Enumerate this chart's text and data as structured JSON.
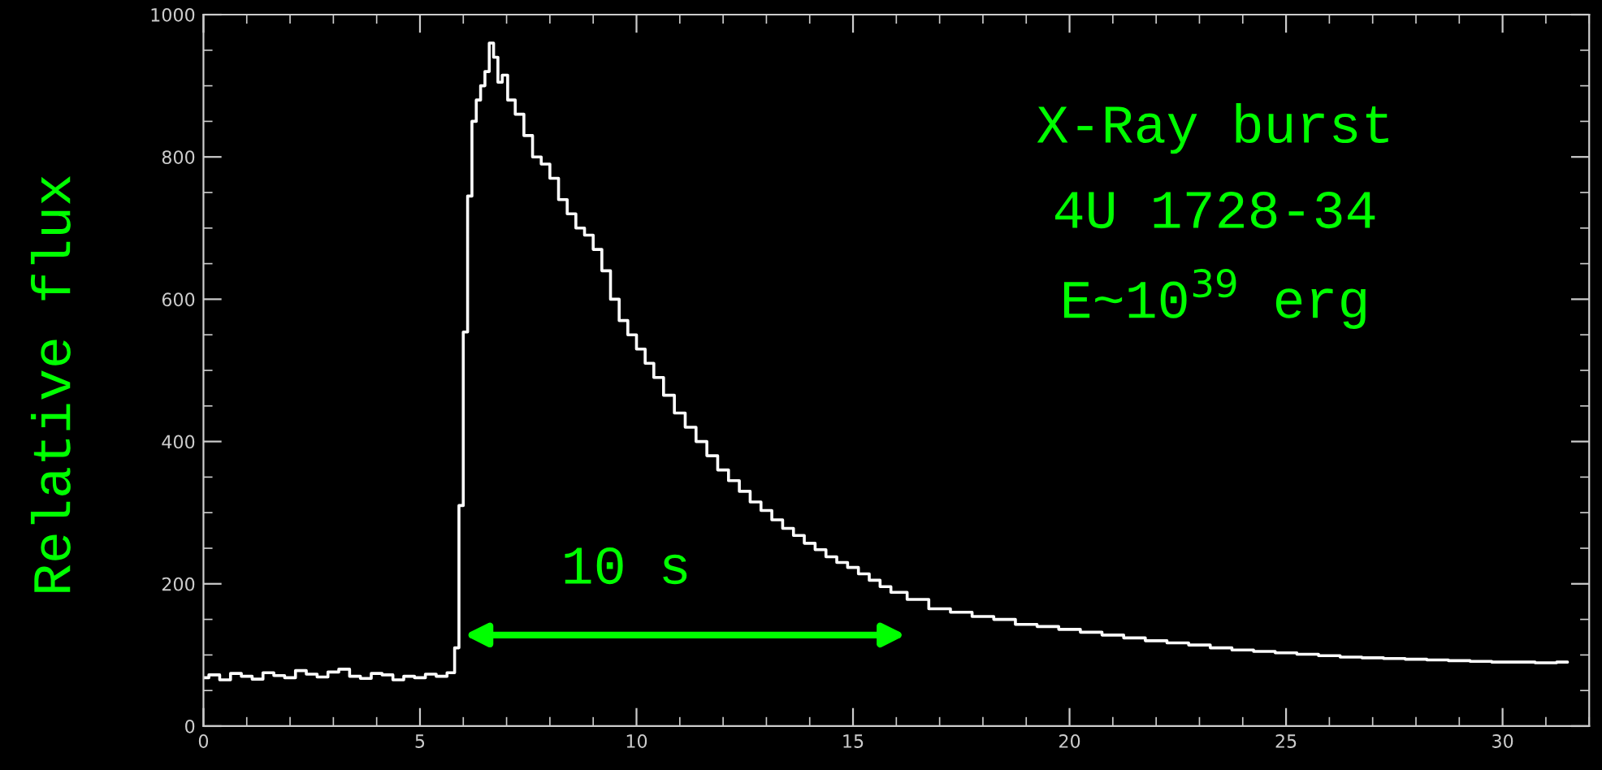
{
  "chart_data": {
    "type": "step",
    "ylabel": "Relative flux",
    "annotations": [
      "X-Ray burst",
      "4U 1728-34",
      "E~10$^{39}$ erg",
      "10 s"
    ],
    "x": [
      0,
      0.25,
      0.5,
      0.75,
      1,
      1.25,
      1.5,
      1.75,
      2,
      2.25,
      2.5,
      2.75,
      3,
      3.25,
      3.5,
      3.75,
      4,
      4.25,
      4.5,
      4.75,
      5,
      5.25,
      5.5,
      5.75,
      5.85,
      5.95,
      6.05,
      6.15,
      6.25,
      6.35,
      6.45,
      6.55,
      6.65,
      6.75,
      6.85,
      6.95,
      7.1,
      7.3,
      7.5,
      7.7,
      7.9,
      8.1,
      8.3,
      8.5,
      8.7,
      8.9,
      9.1,
      9.3,
      9.5,
      9.7,
      9.9,
      10.1,
      10.3,
      10.5,
      10.75,
      11,
      11.25,
      11.5,
      11.75,
      12,
      12.25,
      12.5,
      12.75,
      13,
      13.25,
      13.5,
      13.75,
      14,
      14.25,
      14.5,
      14.75,
      15,
      15.25,
      15.5,
      15.75,
      16,
      16.5,
      17,
      17.5,
      18,
      18.5,
      19,
      19.5,
      20,
      20.5,
      21,
      21.5,
      22,
      22.5,
      23,
      23.5,
      24,
      24.5,
      25,
      25.5,
      26,
      26.5,
      27,
      27.5,
      28,
      28.5,
      29,
      29.5,
      30,
      30.5,
      31,
      31.5
    ],
    "series": [
      {
        "color": "#ffffff",
        "values": [
          68,
          72,
          65,
          74,
          70,
          66,
          75,
          71,
          68,
          78,
          73,
          69,
          76,
          80,
          70,
          67,
          74,
          72,
          65,
          70,
          68,
          73,
          70,
          75,
          110,
          310,
          554,
          745,
          850,
          880,
          900,
          920,
          960,
          940,
          905,
          915,
          880,
          860,
          830,
          800,
          790,
          770,
          740,
          720,
          700,
          690,
          670,
          640,
          600,
          570,
          550,
          530,
          510,
          490,
          465,
          440,
          420,
          400,
          380,
          360,
          345,
          330,
          315,
          303,
          290,
          278,
          268,
          257,
          248,
          238,
          230,
          223,
          214,
          205,
          196,
          188,
          178,
          165,
          160,
          154,
          150,
          143,
          140,
          136,
          132,
          128,
          124,
          120,
          117,
          114,
          110,
          107,
          105,
          103,
          101,
          99,
          97,
          96,
          95,
          94,
          93,
          92,
          91,
          90,
          90,
          89,
          90
        ]
      }
    ],
    "xlim": [
      0,
      32
    ],
    "ylim": [
      0,
      1000
    ],
    "xticks": [
      0,
      5,
      10,
      15,
      20,
      25,
      30
    ],
    "yticks": [
      0,
      200,
      400,
      600,
      800,
      1000
    ],
    "grid": false,
    "legend": false
  }
}
